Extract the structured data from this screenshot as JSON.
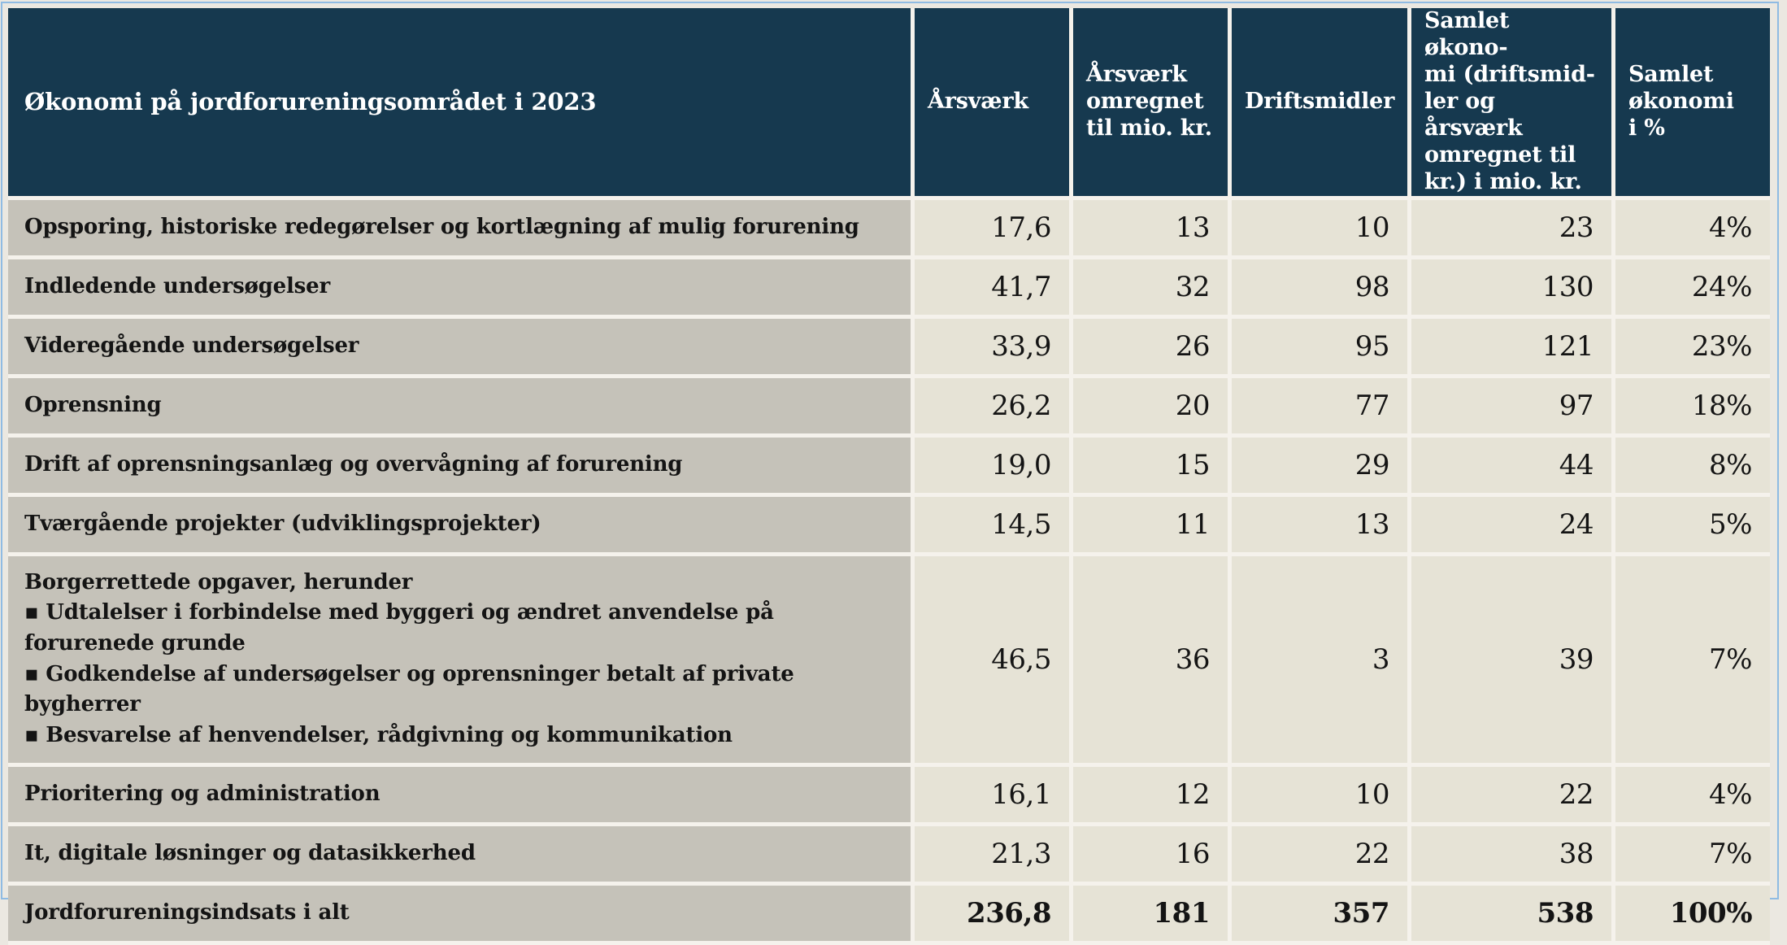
{
  "table": {
    "title": "Økonomi på jordforureningsområdet i 2023",
    "bullet_char": "▪",
    "columns": [
      "Årsværk",
      "Årsværk\nomregnet\ntil mio. kr.",
      "Driftsmidler",
      "Samlet økono-\nmi (driftsmid-\nler og årsværk\nomregnet til\nkr.) i mio. kr.",
      "Samlet\nøkonomi\ni %"
    ],
    "rows": [
      {
        "label": "Opsporing, historiske redegørelser og kortlægning af mulig forurening",
        "values": [
          "17,6",
          "13",
          "10",
          "23",
          "4%"
        ]
      },
      {
        "label": "Indledende undersøgelser",
        "values": [
          "41,7",
          "32",
          "98",
          "130",
          "24%"
        ]
      },
      {
        "label": "Videregående undersøgelser",
        "values": [
          "33,9",
          "26",
          "95",
          "121",
          "23%"
        ]
      },
      {
        "label": "Oprensning",
        "values": [
          "26,2",
          "20",
          "77",
          "97",
          "18%"
        ]
      },
      {
        "label": "Drift af oprensningsanlæg og overvågning af forurening",
        "values": [
          "19,0",
          "15",
          "29",
          "44",
          "8%"
        ]
      },
      {
        "label": "Tværgående projekter (udviklingsprojekter)",
        "values": [
          "14,5",
          "11",
          "13",
          "24",
          "5%"
        ]
      },
      {
        "label": "Borgerrettede opgaver, herunder",
        "bullets": [
          "Udtalelser i forbindelse med byggeri og ændret anvendelse på forurenede grunde",
          "Godkendelse af undersøgelser og oprensninger betalt af private bygherrer",
          "Besvarelse af henvendelser, rådgivning og kommunikation"
        ],
        "values": [
          "46,5",
          "36",
          "3",
          "39",
          "7%"
        ]
      },
      {
        "label": "Prioritering og administration",
        "values": [
          "16,1",
          "12",
          "10",
          "22",
          "4%"
        ]
      },
      {
        "label": "It, digitale løsninger og datasikkerhed",
        "values": [
          "21,3",
          "16",
          "22",
          "38",
          "7%"
        ]
      }
    ],
    "total_row": {
      "label": "Jordforureningsindsats i alt",
      "values": [
        "236,8",
        "181",
        "357",
        "538",
        "100%"
      ]
    },
    "colors": {
      "header_bg": "#16394f",
      "label_bg": "#c5c2b9",
      "data_bg": "#e6e3d6",
      "separator": "#f5f2ec",
      "page_bg": "#ebe8e1",
      "selection_border": "#8fbbe3",
      "header_text": "#ffffff",
      "body_text": "#141414"
    }
  }
}
